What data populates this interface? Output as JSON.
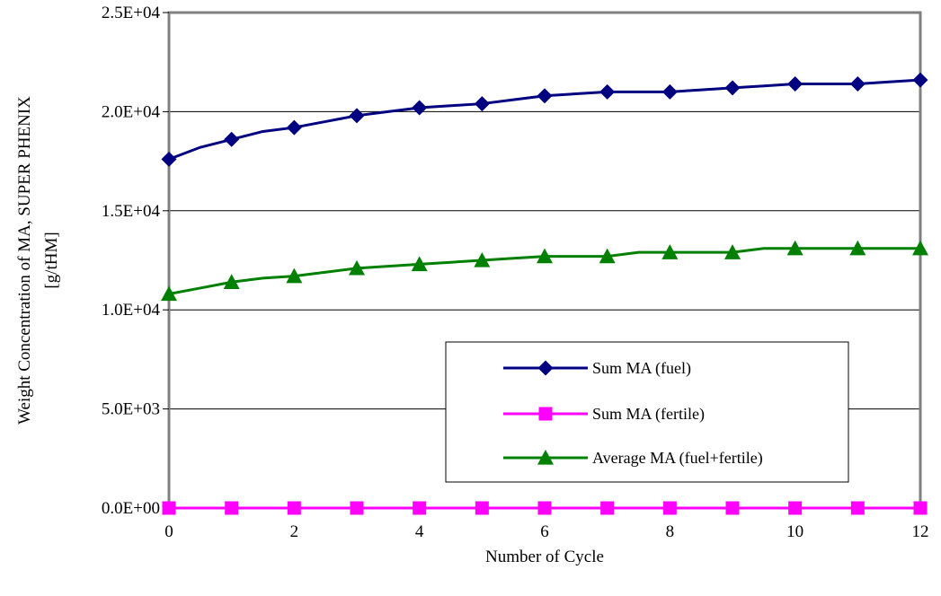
{
  "chart_data": {
    "type": "line",
    "xlabel": "Number of Cycle",
    "ylabel_line1": "Weight Concentration of MA, SUPER PHENIX",
    "ylabel_line2": "[g/tHM]",
    "xlim": [
      0,
      12
    ],
    "ylim": [
      0,
      25000
    ],
    "x_ticks": [
      "0",
      "2",
      "4",
      "6",
      "8",
      "10",
      "12"
    ],
    "x_tick_values": [
      0,
      2,
      4,
      6,
      8,
      10,
      12
    ],
    "y_ticks": [
      "0.0E+00",
      "5.0E+03",
      "1.0E+04",
      "1.5E+04",
      "2.0E+04",
      "2.5E+04"
    ],
    "y_tick_values": [
      0,
      5000,
      10000,
      15000,
      20000,
      25000
    ],
    "grid": "horizontal",
    "legend_position": "lower-right",
    "series": [
      {
        "name": "Sum MA (fuel)",
        "color": "#000080",
        "marker": "diamond",
        "x": [
          0,
          0.5,
          1,
          1.5,
          2,
          2.5,
          3,
          3.5,
          4,
          4.5,
          5,
          5.5,
          6,
          6.5,
          7,
          7.5,
          8,
          8.5,
          9,
          9.5,
          10,
          10.5,
          11,
          11.5,
          12
        ],
        "y": [
          17600,
          18200,
          18600,
          19000,
          19200,
          19500,
          19800,
          20000,
          20200,
          20300,
          20400,
          20600,
          20800,
          20900,
          21000,
          21000,
          21000,
          21100,
          21200,
          21300,
          21400,
          21400,
          21400,
          21500,
          21600
        ],
        "marker_x": [
          0,
          1,
          2,
          3,
          4,
          5,
          6,
          7,
          8,
          9,
          10,
          11,
          12
        ]
      },
      {
        "name": "Sum MA (fertile)",
        "color": "#ff00ff",
        "marker": "square",
        "x": [
          0,
          1,
          2,
          3,
          4,
          5,
          6,
          7,
          8,
          9,
          10,
          11,
          12
        ],
        "y": [
          0,
          0,
          0,
          0,
          0,
          0,
          0,
          0,
          0,
          0,
          0,
          0,
          0
        ],
        "marker_x": [
          0,
          1,
          2,
          3,
          4,
          5,
          6,
          7,
          8,
          9,
          10,
          11,
          12
        ]
      },
      {
        "name": "Average MA (fuel+fertile)",
        "color": "#008000",
        "marker": "triangle",
        "x": [
          0,
          0.5,
          1,
          1.5,
          2,
          2.5,
          3,
          3.5,
          4,
          4.5,
          5,
          5.5,
          6,
          6.5,
          7,
          7.5,
          8,
          8.5,
          9,
          9.5,
          10,
          10.5,
          11,
          11.5,
          12
        ],
        "y": [
          10800,
          11100,
          11400,
          11600,
          11700,
          11900,
          12100,
          12200,
          12300,
          12400,
          12500,
          12600,
          12700,
          12700,
          12700,
          12900,
          12900,
          12900,
          12900,
          13100,
          13100,
          13100,
          13100,
          13100,
          13100
        ],
        "marker_x": [
          0,
          1,
          2,
          3,
          4,
          5,
          6,
          7,
          8,
          9,
          10,
          11,
          12
        ]
      }
    ]
  }
}
